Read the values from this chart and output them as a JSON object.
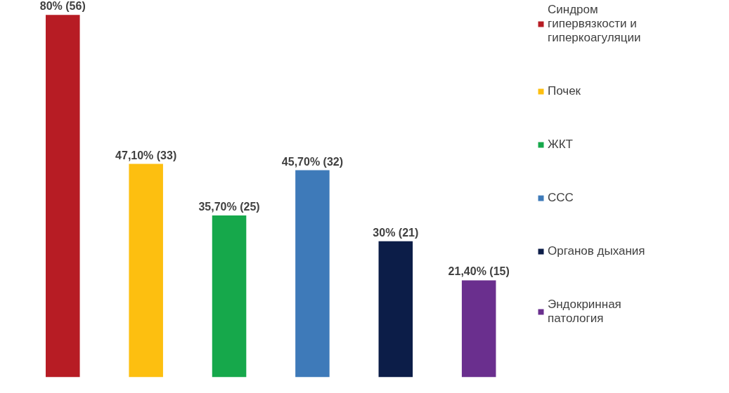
{
  "chart_data": {
    "type": "bar",
    "stacked": true,
    "categories": [
      null,
      null,
      null,
      null,
      null,
      null
    ],
    "tick_labels": false,
    "grid": false,
    "legend": "right",
    "series": [
      {
        "name": "Синдром гипервязкости и гиперкоагуляции",
        "color": "#b71c24",
        "values": [
          80,
          null,
          null,
          null,
          null,
          null
        ],
        "value_labels": [
          "80% (56)",
          null,
          null,
          null,
          null,
          null
        ]
      },
      {
        "name": "Почек",
        "color": "#fdbf10",
        "values": [
          null,
          47.1,
          null,
          null,
          null,
          null
        ],
        "value_labels": [
          null,
          "47,10% (33)",
          null,
          null,
          null,
          null
        ]
      },
      {
        "name": "ЖКТ",
        "color": "#16a84b",
        "values": [
          null,
          null,
          35.7,
          null,
          null,
          null
        ],
        "value_labels": [
          null,
          null,
          "35,70% (25)",
          null,
          null,
          null
        ]
      },
      {
        "name": "ССС",
        "color": "#3e7ab9",
        "values": [
          null,
          null,
          null,
          45.7,
          null,
          null
        ],
        "value_labels": [
          null,
          null,
          null,
          "45,70% (32)",
          null,
          null
        ]
      },
      {
        "name": "Органов дыхания",
        "color": "#0c1d48",
        "values": [
          null,
          null,
          null,
          null,
          30,
          null
        ],
        "value_labels": [
          null,
          null,
          null,
          null,
          "30% (21)",
          null
        ]
      },
      {
        "name": "Эндокринная патология",
        "color": "#6a2f8e",
        "values": [
          null,
          null,
          null,
          null,
          null,
          21.4
        ],
        "value_labels": [
          null,
          null,
          null,
          null,
          null,
          "21,40% (15)"
        ]
      }
    ]
  }
}
